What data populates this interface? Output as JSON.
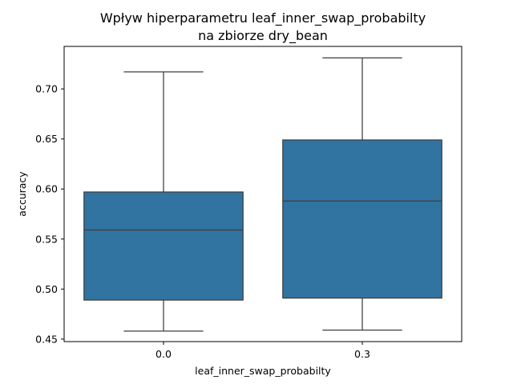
{
  "chart_data": {
    "type": "box",
    "title_line1": "Wpływ hiperparametru leaf_inner_swap_probabilty",
    "title_line2": "na zbiorze dry_bean",
    "xlabel": "leaf_inner_swap_probabilty",
    "ylabel": "accuracy",
    "categories": [
      "0.0",
      "0.3"
    ],
    "ylim": [
      0.4475,
      0.7425
    ],
    "yticks": [
      0.45,
      0.5,
      0.55,
      0.6,
      0.65,
      0.7
    ],
    "ytick_labels": [
      "0.45",
      "0.50",
      "0.55",
      "0.60",
      "0.65",
      "0.70"
    ],
    "box_color": "#3274a1",
    "line_color": "#3d3d3d",
    "grid": false,
    "boxes": [
      {
        "category": "0.0",
        "min": 0.458,
        "q1": 0.489,
        "median": 0.559,
        "q3": 0.597,
        "max": 0.717
      },
      {
        "category": "0.3",
        "min": 0.459,
        "q1": 0.491,
        "median": 0.588,
        "q3": 0.649,
        "max": 0.731
      }
    ]
  }
}
